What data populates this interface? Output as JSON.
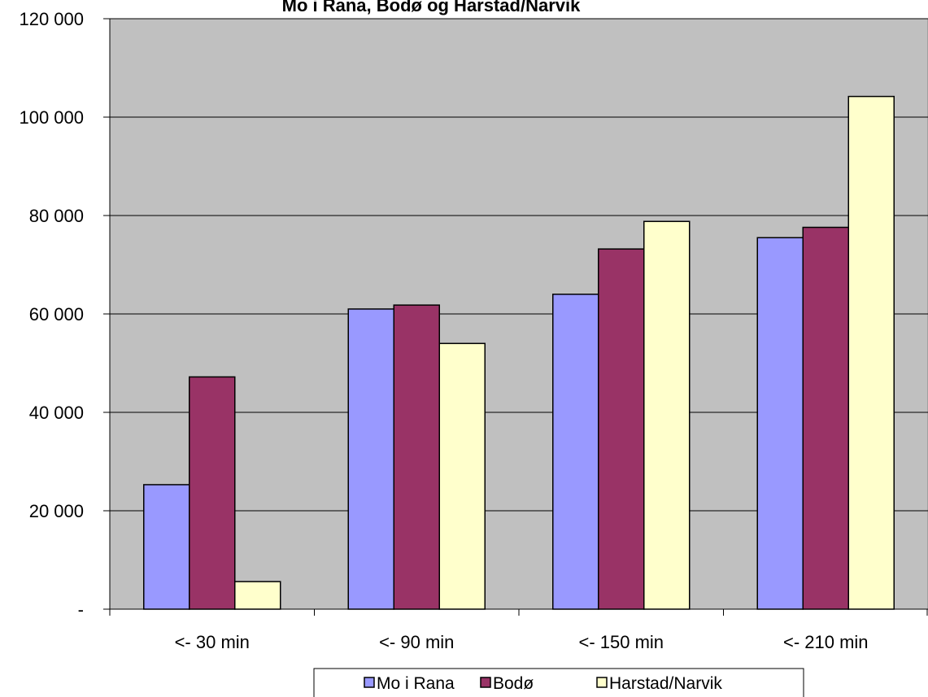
{
  "chart_data": {
    "type": "bar",
    "title": "Mo i Rana, Bodø og Harstad/Narvik",
    "xlabel": "",
    "ylabel": "",
    "categories": [
      "<- 30 min",
      "<- 90 min",
      "<- 150 min",
      "<- 210 min"
    ],
    "series": [
      {
        "name": "Mo i Rana",
        "color": "#9999ff",
        "values": [
          25300,
          61000,
          64000,
          75500
        ]
      },
      {
        "name": "Bodø",
        "color": "#993366",
        "values": [
          47200,
          61800,
          73200,
          77600
        ]
      },
      {
        "name": "Harstad/Narvik",
        "color": "#ffffcc",
        "values": [
          5600,
          54000,
          78800,
          104200
        ]
      }
    ],
    "ylim": [
      0,
      120000
    ],
    "yticks": [
      0,
      20000,
      40000,
      60000,
      80000,
      100000,
      120000
    ],
    "ytick_labels": [
      "-",
      "20 000",
      "40 000",
      "60 000",
      "80 000",
      "100 000",
      "120 000"
    ],
    "grid": true,
    "plot_background": "#c0c0c0",
    "legend_position": "bottom"
  }
}
